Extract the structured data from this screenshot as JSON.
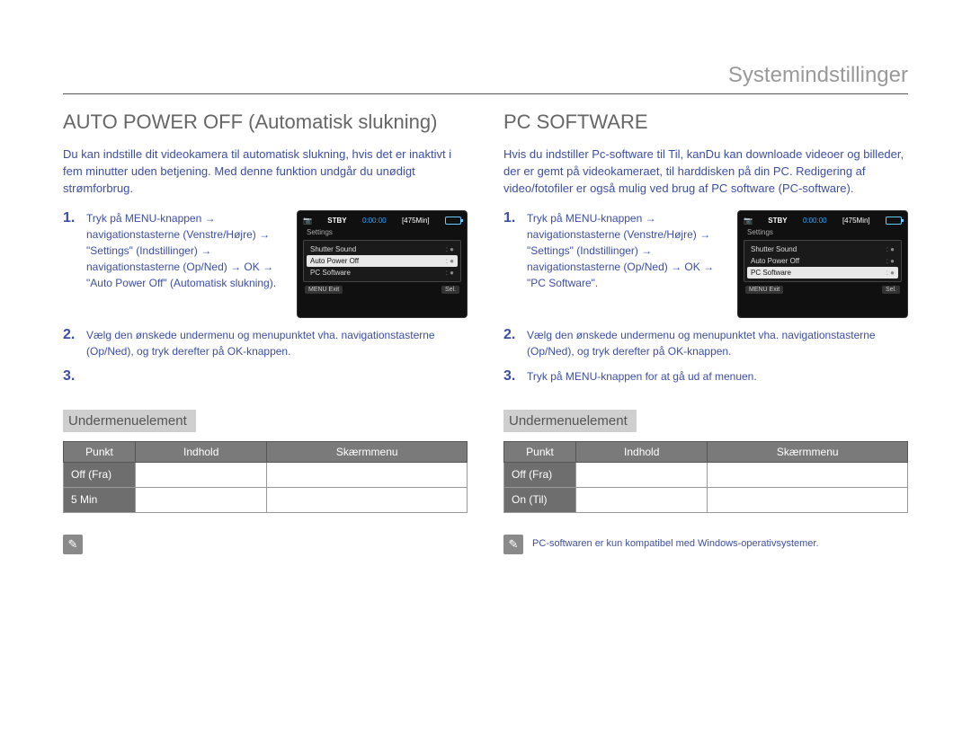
{
  "page_header": "Systemindstillinger",
  "left": {
    "title": "AUTO POWER OFF (Automatisk slukning)",
    "intro": "Du kan indstille dit videokamera til automatisk slukning, hvis det er inaktivt i fem minutter uden betjening. Med denne funktion undgår du unødigt strømforbrug.",
    "step1_num": "1.",
    "step1": "Tryk på MENU-knappen → navigationstasterne (Venstre/Højre) → \"Settings\" (Indstillinger) → navigationstasterne (Op/Ned) → OK → \"Auto Power Off\" (Automatisk slukning).",
    "step2_num": "2.",
    "step2": "Vælg den ønskede undermenu og menupunktet vha. navigationstasterne (Op/Ned), og tryk derefter på OK-knappen.",
    "step3_num": "3.",
    "step3": "",
    "sub_label": "Undermenuelement",
    "lcd": {
      "stby": "STBY",
      "time": "0:00:00",
      "remain": "[475Min]",
      "settings": "Settings",
      "items": [
        "Shutter Sound",
        "Auto Power Off",
        "PC Software"
      ],
      "sel_index": 1,
      "exit": "MENU Exit",
      "ok": "Sel."
    },
    "table": {
      "headers": [
        "Punkt",
        "Indhold",
        "Skærmmenu"
      ],
      "rows": [
        {
          "pkt": "Off (Fra)",
          "indhold": "",
          "menu": ""
        },
        {
          "pkt": "5 Min",
          "indhold": "",
          "menu": ""
        }
      ]
    }
  },
  "right": {
    "title": "PC SOFTWARE",
    "intro": "Hvis du indstiller Pc-software til Til, kanDu kan downloade videoer og billeder, der er gemt på videokameraet, til harddisken på din PC. Redigering af video/fotofiler er også mulig ved brug af PC software (PC-software).",
    "step1_num": "1.",
    "step1": "Tryk på MENU-knappen → navigationstasterne (Venstre/Højre) → \"Settings\" (Indstillinger) → navigationstasterne (Op/Ned) → OK → \"PC Software\".",
    "step2_num": "2.",
    "step2": "Vælg den ønskede undermenu og menupunktet vha. navigationstasterne (Op/Ned), og tryk derefter på OK-knappen.",
    "step3_num": "3.",
    "step3": "Tryk på MENU-knappen for at gå ud af menuen.",
    "sub_label": "Undermenuelement",
    "lcd": {
      "stby": "STBY",
      "time": "0:00:00",
      "remain": "[475Min]",
      "settings": "Settings",
      "items": [
        "Shutter Sound",
        "Auto Power Off",
        "PC Software"
      ],
      "sel_index": 2,
      "exit": "MENU Exit",
      "ok": "Sel."
    },
    "table": {
      "headers": [
        "Punkt",
        "Indhold",
        "Skærmmenu"
      ],
      "rows": [
        {
          "pkt": "Off (Fra)",
          "indhold": "",
          "menu": ""
        },
        {
          "pkt": "On (Til)",
          "indhold": "",
          "menu": ""
        }
      ]
    },
    "note": "PC-softwaren er kun kompatibel med Windows-operativsystemer."
  }
}
